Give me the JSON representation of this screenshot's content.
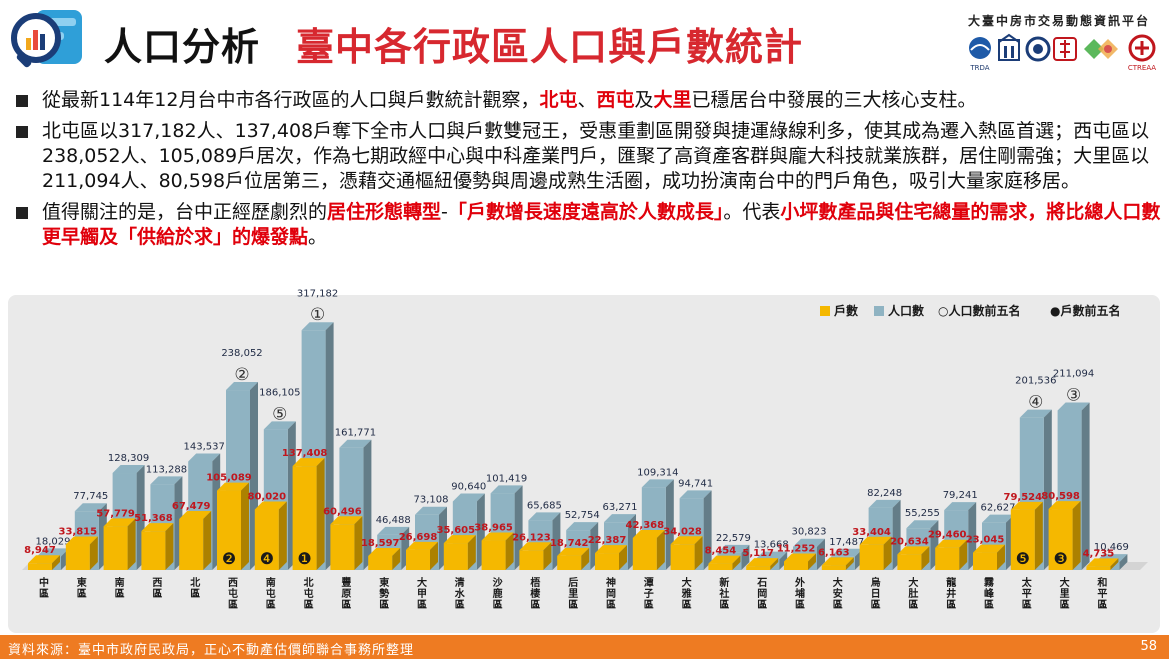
{
  "header": {
    "main_title": "人口分析",
    "sub_title": "臺中各行政區人口與戶數統計",
    "platform_name": "大臺中房市交易動態資訊平台",
    "logo_caption": "TRDA",
    "partner_logo_caption": "CTREAA",
    "logo_icon": "magnifier-bar-chart-icon"
  },
  "bullets": {
    "b1": {
      "pre": "從最新114年12月台中市各行政區的人口與戶數統計觀察，",
      "h1": "北屯",
      "sep1": "、",
      "h2": "西屯",
      "mid": "及",
      "h3": "大里",
      "post": "已穩居台中發展的三大核心支柱。"
    },
    "b2": {
      "text": "北屯區以317,182人、137,408戶奪下全市人口與戶數雙冠王，受惠重劃區開發與捷運綠線利多，使其成為遷入熱區首選；西屯區以238,052人、105,089戶居次，作為七期政經中心與中科產業門戶，匯聚了高資產客群與龐大科技就業族群，居住剛需強；大里區以211,094人、80,598戶位居第三，憑藉交通樞紐優勢與周邊成熟生活圈，成功扮演南台中的門戶角色，吸引大量家庭移居。"
    },
    "b3": {
      "pre": "值得關注的是，台中正經歷劇烈的",
      "h1": "居住形態轉型",
      "dash": "-",
      "h2": "「戶數增長速度遠高於人數成長」",
      "mid": "。代表",
      "h3": "小坪數產品與住宅總量的需求，將比總人口數更早觸及「供給於求」的爆發點",
      "end": "。"
    }
  },
  "footer": {
    "source": "資料來源：臺中市政府民政局，正心不動產估價師聯合事務所整理",
    "page": "58"
  },
  "colors": {
    "households": "#f5b800",
    "population": "#8fb3c2",
    "household_label": "#c0161d",
    "population_label": "#1f2a44",
    "footer": "#ee7b22",
    "title_red": "#d7282f"
  },
  "chart_data": {
    "type": "bar",
    "categories": [
      "中區",
      "東區",
      "南區",
      "西區",
      "北區",
      "西屯區",
      "南屯區",
      "北屯區",
      "豐原區",
      "東勢區",
      "大甲區",
      "清水區",
      "沙鹿區",
      "梧棲區",
      "后里區",
      "神岡區",
      "潭子區",
      "大雅區",
      "新社區",
      "石岡區",
      "外埔區",
      "大安區",
      "烏日區",
      "大肚區",
      "龍井區",
      "霧峰區",
      "太平區",
      "大里區",
      "和平區"
    ],
    "series": [
      {
        "name": "戶數",
        "values": [
          8947,
          33815,
          57779,
          51368,
          67479,
          105089,
          80020,
          137408,
          60496,
          18597,
          26698,
          35605,
          38965,
          26123,
          18742,
          22387,
          42368,
          34028,
          8454,
          5117,
          11252,
          6163,
          33404,
          20634,
          29460,
          23045,
          79524,
          80598,
          4735
        ]
      },
      {
        "name": "人口數",
        "values": [
          18029,
          77745,
          128309,
          113288,
          143537,
          238052,
          186105,
          317182,
          161771,
          46488,
          73108,
          90640,
          101419,
          65685,
          52754,
          63271,
          109314,
          94741,
          22579,
          13668,
          30823,
          17487,
          82248,
          55255,
          79241,
          62627,
          201536,
          211094,
          10469
        ]
      }
    ],
    "legend": [
      "戶數",
      "人口數",
      "○人口數前五名",
      "●戶數前五名"
    ],
    "legend_position": "top-right",
    "population_top5": {
      "北屯區": "①",
      "西屯區": "②",
      "大里區": "③",
      "太平區": "④",
      "南屯區": "⑤"
    },
    "households_top5": {
      "北屯區": "❶",
      "西屯區": "❷",
      "大里區": "❸",
      "南屯區": "❹",
      "太平區": "❺"
    },
    "ylim": [
      0,
      340000
    ],
    "grid": false,
    "style": "3d-bar"
  }
}
